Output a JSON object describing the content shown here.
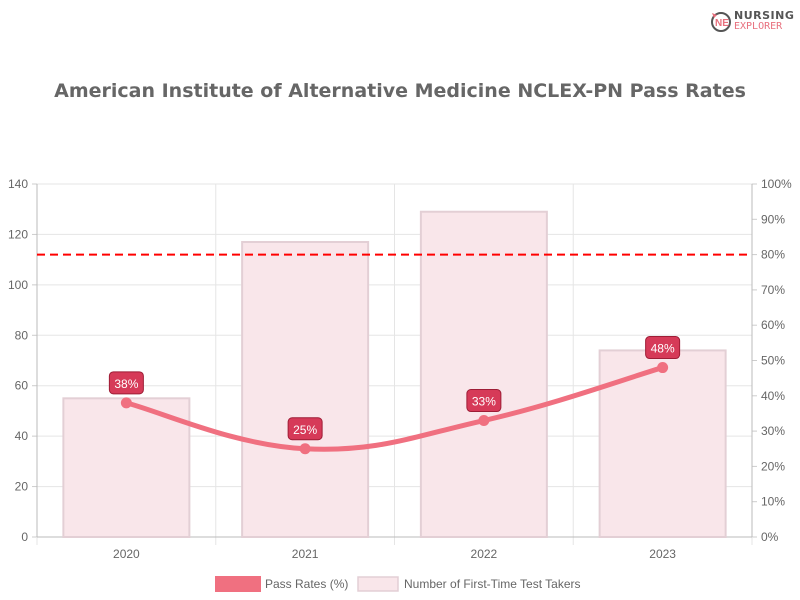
{
  "title": "American Institute of Alternative Medicine NCLEX-PN Pass Rates",
  "logo": {
    "line1": "NURSING",
    "line2": "EXPLORER"
  },
  "chart_data": {
    "type": "bar+line",
    "title": "American Institute of Alternative Medicine NCLEX-PN Pass Rates",
    "categories": [
      "2020",
      "2021",
      "2022",
      "2023"
    ],
    "series": [
      {
        "name": "Pass Rates (%)",
        "type": "line",
        "axis": "right",
        "values": [
          38,
          25,
          33,
          48
        ],
        "labels": [
          "38%",
          "25%",
          "33%",
          "48%"
        ],
        "color": "#f07080"
      },
      {
        "name": "Number of First-Time Test Takers",
        "type": "bar",
        "axis": "left",
        "values": [
          55,
          117,
          129,
          74
        ],
        "color": "#f9e6ea"
      }
    ],
    "reference_line": {
      "value": 80,
      "axis": "right",
      "color": "#ff0000",
      "style": "dashed"
    },
    "y_left": {
      "min": 0,
      "max": 140,
      "ticks": [
        "0",
        "20",
        "40",
        "60",
        "80",
        "100",
        "120",
        "140"
      ]
    },
    "y_right": {
      "min": 0,
      "max": 100,
      "ticks": [
        "0%",
        "10%",
        "20%",
        "30%",
        "40%",
        "50%",
        "60%",
        "70%",
        "80%",
        "90%",
        "100%"
      ]
    },
    "grid": true,
    "legend": "bottom"
  }
}
